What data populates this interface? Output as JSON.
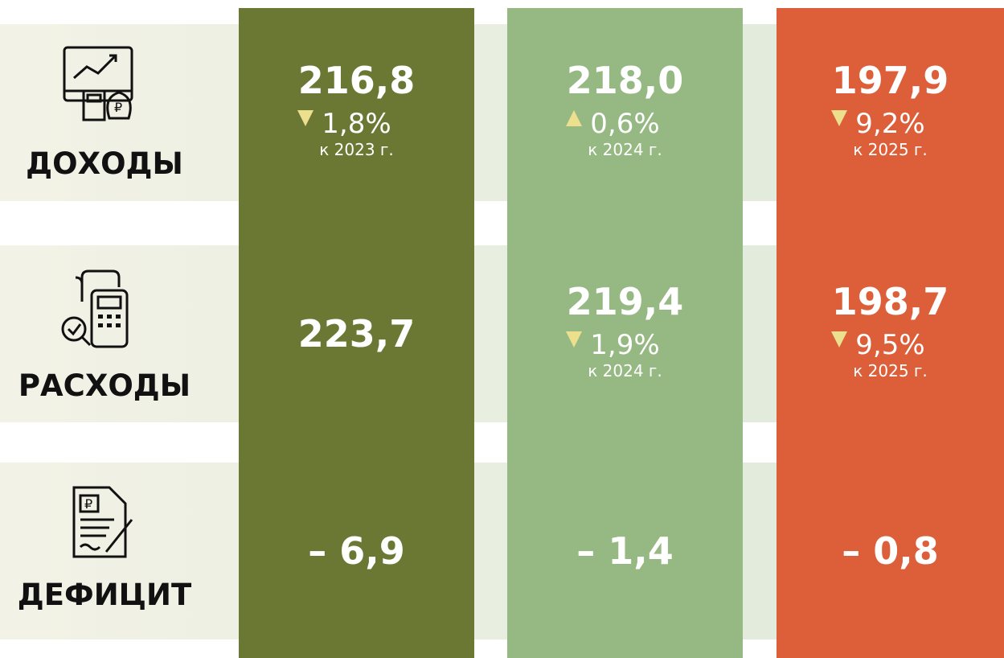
{
  "rows": [
    {
      "label": "ДОХОДЫ"
    },
    {
      "label": "РАСХОДЫ"
    },
    {
      "label": "ДЕФИЦИТ"
    }
  ],
  "columns": [
    {
      "color": "#6b7834",
      "cells": [
        {
          "value": "216,8",
          "change": {
            "direction": "down",
            "text": "1,8%",
            "note": "к 2023 г."
          }
        },
        {
          "value": "223,7"
        },
        {
          "value": "– 6,9"
        }
      ]
    },
    {
      "color": "#96b882",
      "cells": [
        {
          "value": "218,0",
          "change": {
            "direction": "up",
            "text": "0,6%",
            "note": "к 2024 г."
          }
        },
        {
          "value": "219,4",
          "change": {
            "direction": "down",
            "text": "1,9%",
            "note": "к 2024 г."
          }
        },
        {
          "value": "– 1,4"
        }
      ]
    },
    {
      "color": "#dc5f3a",
      "cells": [
        {
          "value": "197,9",
          "change": {
            "direction": "down",
            "text": "9,2%",
            "note": "к 2025 г."
          }
        },
        {
          "value": "198,7",
          "change": {
            "direction": "down",
            "text": "9,5%",
            "note": "к 2025 г."
          }
        },
        {
          "value": "– 0,8"
        }
      ]
    }
  ]
}
